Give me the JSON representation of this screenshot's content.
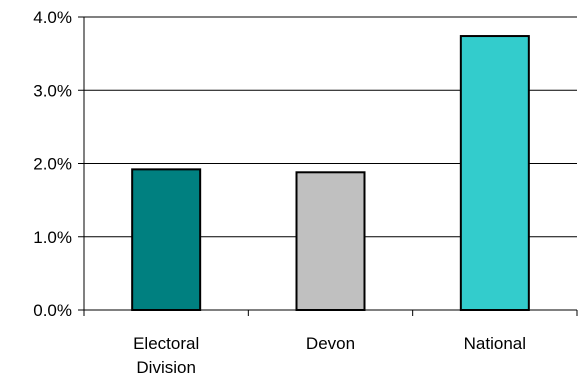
{
  "chart_data": {
    "type": "bar",
    "categories": [
      "Electoral Division",
      "Devon",
      "National"
    ],
    "category_label_lines": [
      [
        "Electoral",
        "Division"
      ],
      [
        "Devon"
      ],
      [
        "National"
      ]
    ],
    "values": [
      1.92,
      1.88,
      3.74
    ],
    "value_unit": "%",
    "ylim": [
      0,
      4
    ],
    "y_ticks": [
      0,
      1,
      2,
      3,
      4
    ],
    "y_tick_labels": [
      "0.0%",
      "1.0%",
      "2.0%",
      "3.0%",
      "4.0%"
    ],
    "bar_colors": [
      "#008080",
      "#c0c0c0",
      "#33cccc"
    ],
    "grid": true,
    "title": "",
    "xlabel": "",
    "ylabel": ""
  }
}
